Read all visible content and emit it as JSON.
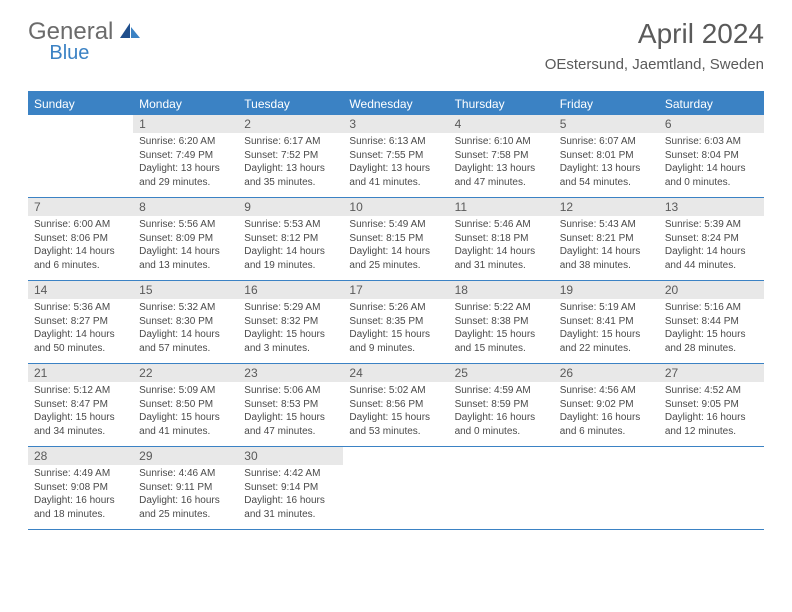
{
  "logo": {
    "text_general": "General",
    "text_blue": "Blue"
  },
  "header": {
    "month_title": "April 2024",
    "location": "OEstersund, Jaemtland, Sweden"
  },
  "colors": {
    "header_bar": "#3b82c4",
    "day_number_bg": "#e8e8e8",
    "text_muted": "#5a5a5a",
    "text_body": "#4a4a4a",
    "logo_gray": "#6b6b6b",
    "logo_blue": "#3b82c4",
    "background": "#ffffff"
  },
  "typography": {
    "month_title_fontsize": 28,
    "location_fontsize": 15,
    "dow_fontsize": 12,
    "daynum_fontsize": 12,
    "body_fontsize": 10
  },
  "days_of_week": [
    "Sunday",
    "Monday",
    "Tuesday",
    "Wednesday",
    "Thursday",
    "Friday",
    "Saturday"
  ],
  "calendar": {
    "month": 4,
    "year": 2024,
    "first_dow_index": 1,
    "num_days": 30,
    "days": [
      {
        "n": 1,
        "sunrise": "6:20 AM",
        "sunset": "7:49 PM",
        "daylight": "13 hours and 29 minutes."
      },
      {
        "n": 2,
        "sunrise": "6:17 AM",
        "sunset": "7:52 PM",
        "daylight": "13 hours and 35 minutes."
      },
      {
        "n": 3,
        "sunrise": "6:13 AM",
        "sunset": "7:55 PM",
        "daylight": "13 hours and 41 minutes."
      },
      {
        "n": 4,
        "sunrise": "6:10 AM",
        "sunset": "7:58 PM",
        "daylight": "13 hours and 47 minutes."
      },
      {
        "n": 5,
        "sunrise": "6:07 AM",
        "sunset": "8:01 PM",
        "daylight": "13 hours and 54 minutes."
      },
      {
        "n": 6,
        "sunrise": "6:03 AM",
        "sunset": "8:04 PM",
        "daylight": "14 hours and 0 minutes."
      },
      {
        "n": 7,
        "sunrise": "6:00 AM",
        "sunset": "8:06 PM",
        "daylight": "14 hours and 6 minutes."
      },
      {
        "n": 8,
        "sunrise": "5:56 AM",
        "sunset": "8:09 PM",
        "daylight": "14 hours and 13 minutes."
      },
      {
        "n": 9,
        "sunrise": "5:53 AM",
        "sunset": "8:12 PM",
        "daylight": "14 hours and 19 minutes."
      },
      {
        "n": 10,
        "sunrise": "5:49 AM",
        "sunset": "8:15 PM",
        "daylight": "14 hours and 25 minutes."
      },
      {
        "n": 11,
        "sunrise": "5:46 AM",
        "sunset": "8:18 PM",
        "daylight": "14 hours and 31 minutes."
      },
      {
        "n": 12,
        "sunrise": "5:43 AM",
        "sunset": "8:21 PM",
        "daylight": "14 hours and 38 minutes."
      },
      {
        "n": 13,
        "sunrise": "5:39 AM",
        "sunset": "8:24 PM",
        "daylight": "14 hours and 44 minutes."
      },
      {
        "n": 14,
        "sunrise": "5:36 AM",
        "sunset": "8:27 PM",
        "daylight": "14 hours and 50 minutes."
      },
      {
        "n": 15,
        "sunrise": "5:32 AM",
        "sunset": "8:30 PM",
        "daylight": "14 hours and 57 minutes."
      },
      {
        "n": 16,
        "sunrise": "5:29 AM",
        "sunset": "8:32 PM",
        "daylight": "15 hours and 3 minutes."
      },
      {
        "n": 17,
        "sunrise": "5:26 AM",
        "sunset": "8:35 PM",
        "daylight": "15 hours and 9 minutes."
      },
      {
        "n": 18,
        "sunrise": "5:22 AM",
        "sunset": "8:38 PM",
        "daylight": "15 hours and 15 minutes."
      },
      {
        "n": 19,
        "sunrise": "5:19 AM",
        "sunset": "8:41 PM",
        "daylight": "15 hours and 22 minutes."
      },
      {
        "n": 20,
        "sunrise": "5:16 AM",
        "sunset": "8:44 PM",
        "daylight": "15 hours and 28 minutes."
      },
      {
        "n": 21,
        "sunrise": "5:12 AM",
        "sunset": "8:47 PM",
        "daylight": "15 hours and 34 minutes."
      },
      {
        "n": 22,
        "sunrise": "5:09 AM",
        "sunset": "8:50 PM",
        "daylight": "15 hours and 41 minutes."
      },
      {
        "n": 23,
        "sunrise": "5:06 AM",
        "sunset": "8:53 PM",
        "daylight": "15 hours and 47 minutes."
      },
      {
        "n": 24,
        "sunrise": "5:02 AM",
        "sunset": "8:56 PM",
        "daylight": "15 hours and 53 minutes."
      },
      {
        "n": 25,
        "sunrise": "4:59 AM",
        "sunset": "8:59 PM",
        "daylight": "16 hours and 0 minutes."
      },
      {
        "n": 26,
        "sunrise": "4:56 AM",
        "sunset": "9:02 PM",
        "daylight": "16 hours and 6 minutes."
      },
      {
        "n": 27,
        "sunrise": "4:52 AM",
        "sunset": "9:05 PM",
        "daylight": "16 hours and 12 minutes."
      },
      {
        "n": 28,
        "sunrise": "4:49 AM",
        "sunset": "9:08 PM",
        "daylight": "16 hours and 18 minutes."
      },
      {
        "n": 29,
        "sunrise": "4:46 AM",
        "sunset": "9:11 PM",
        "daylight": "16 hours and 25 minutes."
      },
      {
        "n": 30,
        "sunrise": "4:42 AM",
        "sunset": "9:14 PM",
        "daylight": "16 hours and 31 minutes."
      }
    ]
  },
  "labels": {
    "sunrise_prefix": "Sunrise: ",
    "sunset_prefix": "Sunset: ",
    "daylight_prefix": "Daylight: "
  }
}
